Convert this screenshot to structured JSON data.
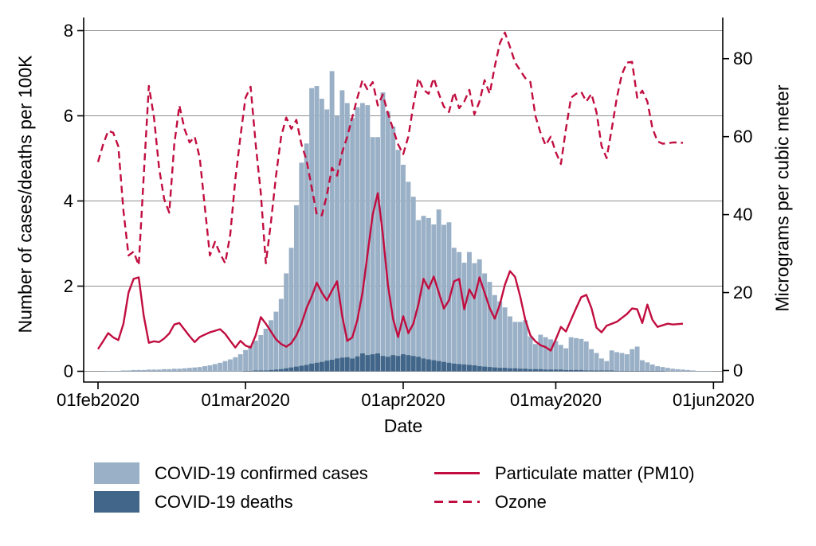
{
  "chart_data": {
    "type": "combo: bar (dual series) + line (solid and dashed), dual y-axes, daily time series",
    "title": "",
    "x": {
      "label": "Date",
      "tick_labels": [
        "01feb2020",
        "01mar2020",
        "01apr2020",
        "01may2020",
        "01jun2020"
      ],
      "tick_day_index": [
        0,
        29,
        60,
        90,
        121
      ],
      "start_date": "01feb2020",
      "end_date": "01jun2020",
      "n_days": 121
    },
    "y_left": {
      "label": "Number of cases/deaths per 100K",
      "tick_labels": [
        "0",
        "2",
        "4",
        "6",
        "8"
      ],
      "tick_values": [
        0,
        2,
        4,
        6,
        8
      ],
      "range": [
        0,
        8.4
      ]
    },
    "y_right": {
      "label": "Micrograms per cubic meter",
      "tick_labels": [
        "0",
        "20",
        "40",
        "60",
        "80"
      ],
      "tick_values": [
        0,
        20,
        40,
        60,
        80
      ],
      "range": [
        0,
        90.6
      ]
    },
    "grid": true,
    "legend": {
      "position": "bottom",
      "columns": 2
    },
    "style": {
      "bar_light_blue": "#9ab0c6",
      "bar_dark_blue": "#416689",
      "line_red": "#c10d3f",
      "grid_gray": "#8f8f8f",
      "axis_black": "#000000",
      "background": "#ffffff"
    },
    "series": [
      {
        "name": "COVID-19 confirmed cases",
        "type": "bar",
        "axis": "left",
        "color": "#9ab0c6",
        "values": [
          0,
          0,
          0.01,
          0.01,
          0.01,
          0.02,
          0.02,
          0.03,
          0.03,
          0.03,
          0.04,
          0.04,
          0.04,
          0.05,
          0.05,
          0.06,
          0.06,
          0.07,
          0.08,
          0.09,
          0.1,
          0.12,
          0.14,
          0.17,
          0.2,
          0.24,
          0.28,
          0.33,
          0.4,
          0.5,
          0.6,
          0.72,
          0.85,
          1.0,
          1.2,
          1.4,
          1.7,
          2.3,
          2.9,
          3.9,
          4.9,
          5.35,
          6.65,
          6.7,
          6.4,
          6.15,
          7.05,
          6.0,
          6.6,
          6.3,
          5.95,
          6.2,
          6.3,
          6.25,
          5.5,
          5.5,
          6.55,
          6.1,
          5.75,
          5.2,
          4.85,
          4.45,
          4.1,
          3.55,
          3.65,
          3.6,
          3.45,
          3.8,
          3.44,
          3.5,
          2.9,
          2.8,
          2.55,
          2.8,
          2.54,
          2.63,
          2.3,
          2.1,
          1.79,
          1.64,
          1.5,
          1.29,
          1.16,
          1.16,
          1.2,
          0.82,
          0.64,
          0.86,
          0.8,
          0.75,
          0.71,
          0.62,
          0.54,
          0.8,
          0.78,
          0.76,
          0.7,
          0.52,
          0.43,
          0.3,
          0.24,
          0.49,
          0.45,
          0.43,
          0.4,
          0.52,
          0.58,
          0.26,
          0.21,
          0.16,
          0.12,
          0.1,
          0.08,
          0.06,
          0.05,
          0.04,
          0.03,
          0.02,
          0.01,
          0.01,
          0.01
        ]
      },
      {
        "name": "COVID-19 deaths",
        "type": "bar",
        "axis": "left",
        "color": "#416689",
        "values": [
          0,
          0,
          0,
          0,
          0,
          0,
          0,
          0,
          0,
          0,
          0,
          0,
          0,
          0,
          0,
          0,
          0,
          0,
          0,
          0,
          0,
          0,
          0,
          0,
          0,
          0,
          0,
          0,
          0,
          0.01,
          0.01,
          0.02,
          0.02,
          0.02,
          0.03,
          0.04,
          0.05,
          0.07,
          0.09,
          0.11,
          0.13,
          0.15,
          0.18,
          0.2,
          0.22,
          0.25,
          0.27,
          0.3,
          0.32,
          0.33,
          0.3,
          0.35,
          0.42,
          0.38,
          0.4,
          0.42,
          0.36,
          0.34,
          0.38,
          0.36,
          0.4,
          0.38,
          0.36,
          0.34,
          0.3,
          0.28,
          0.26,
          0.24,
          0.22,
          0.2,
          0.18,
          0.17,
          0.16,
          0.15,
          0.14,
          0.12,
          0.11,
          0.1,
          0.09,
          0.08,
          0.08,
          0.07,
          0.07,
          0.06,
          0.06,
          0.05,
          0.05,
          0.05,
          0.04,
          0.04,
          0.04,
          0.04,
          0.03,
          0.03,
          0.03,
          0.03,
          0.02,
          0.02,
          0.02,
          0.02,
          0.02,
          0.02,
          0.01,
          0.01,
          0.01,
          0.01,
          0.01,
          0.01,
          0.01,
          0.01,
          0.01,
          0.01,
          0,
          0,
          0,
          0,
          0,
          0,
          0,
          0,
          0
        ]
      },
      {
        "name": "Particulate matter (PM10)",
        "type": "line",
        "dash": "solid",
        "axis": "right",
        "color": "#c10d3f",
        "values": [
          5.5,
          7.5,
          9.6,
          8.5,
          7.8,
          12,
          20,
          23.5,
          23.9,
          14,
          7.1,
          7.5,
          7.3,
          8.2,
          9.5,
          11.8,
          12.2,
          10.5,
          8.8,
          7.3,
          8.6,
          9.2,
          9.8,
          10.2,
          10.6,
          9.4,
          7.6,
          5.9,
          7.6,
          6.4,
          5.9,
          9,
          13.7,
          12,
          10,
          8,
          6.8,
          6.1,
          7,
          9,
          12,
          16,
          19,
          22.5,
          20,
          18,
          20.5,
          22.9,
          14,
          7.6,
          8.5,
          13,
          20,
          30,
          40,
          45.5,
          35,
          22,
          13.3,
          8.6,
          13.9,
          9.6,
          12,
          17,
          23.5,
          21,
          24.1,
          20,
          15.9,
          18,
          22.9,
          23.5,
          15.7,
          20.8,
          18.5,
          23.9,
          20,
          16,
          13.3,
          17,
          22,
          25.5,
          24,
          19,
          13,
          9,
          7.5,
          6.5,
          6.0,
          5.1,
          8,
          11.2,
          10,
          13,
          16,
          18.8,
          19.4,
          16,
          11.0,
          9.8,
          11.5,
          12,
          12.5,
          13.5,
          14.5,
          15.9,
          15.7,
          12.2,
          16.9,
          13,
          11.2,
          11.6,
          12,
          11.8,
          11.9,
          12,
          null,
          null,
          null,
          null,
          null
        ]
      },
      {
        "name": "Ozone",
        "type": "line",
        "dash": "dashed",
        "axis": "right",
        "color": "#c10d3f",
        "values": [
          53.5,
          58,
          61.5,
          61,
          57.5,
          41,
          29.5,
          30.5,
          27,
          50,
          73,
          65,
          52,
          44,
          40.5,
          58,
          68,
          62,
          58.5,
          60,
          54.5,
          42,
          29.5,
          33,
          30,
          27.5,
          35,
          49,
          60,
          70,
          72.8,
          58,
          45.5,
          27.5,
          38,
          50,
          60,
          64.9,
          62,
          64.3,
          58,
          54,
          47,
          40,
          39.8,
          45,
          52,
          50,
          56,
          60,
          65,
          70,
          74.5,
          72,
          74,
          68,
          70.8,
          66,
          62,
          58,
          55.5,
          60,
          68,
          75,
          72,
          71,
          75,
          71,
          67.7,
          66.3,
          71.4,
          67.3,
          69,
          72,
          65.7,
          69,
          74.5,
          71,
          78,
          84,
          86.7,
          83,
          79,
          77,
          75,
          74,
          65.3,
          61,
          57.8,
          60,
          56,
          53,
          62,
          70,
          71,
          71.5,
          69,
          71,
          66.3,
          57.6,
          54.5,
          62,
          70,
          76,
          79,
          79.2,
          70,
          71.8,
          69,
          62.2,
          58.8,
          58.2,
          58.3,
          58.5,
          58.5,
          58.4,
          null,
          null,
          null,
          null,
          null
        ]
      }
    ]
  }
}
